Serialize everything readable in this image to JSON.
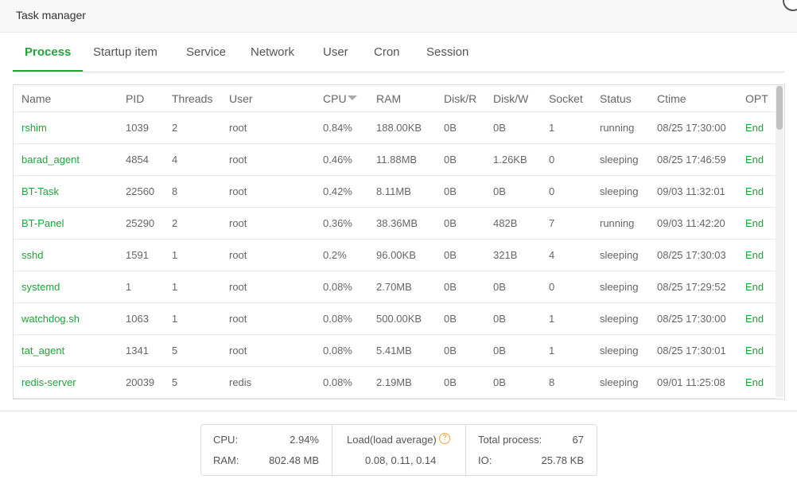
{
  "header": {
    "title": "Task manager"
  },
  "tabs": [
    "Process",
    "Startup item",
    "Service",
    "Network",
    "User",
    "Cron",
    "Session"
  ],
  "active_tab": 0,
  "table": {
    "columns": [
      "Name",
      "PID",
      "Threads",
      "User",
      "CPU",
      "RAM",
      "Disk/R",
      "Disk/W",
      "Socket",
      "Status",
      "Ctime",
      "OPT"
    ],
    "rows": [
      [
        "rshim",
        "1039",
        "2",
        "root",
        "0.84%",
        "188.00KB",
        "0B",
        "0B",
        "1",
        "running",
        "08/25 17:30:00",
        "End"
      ],
      [
        "barad_agent",
        "4854",
        "4",
        "root",
        "0.46%",
        "11.88MB",
        "0B",
        "1.26KB",
        "0",
        "sleeping",
        "08/25 17:46:59",
        "End"
      ],
      [
        "BT-Task",
        "22560",
        "8",
        "root",
        "0.42%",
        "8.11MB",
        "0B",
        "0B",
        "0",
        "sleeping",
        "09/03 11:32:01",
        "End"
      ],
      [
        "BT-Panel",
        "25290",
        "2",
        "root",
        "0.36%",
        "38.36MB",
        "0B",
        "482B",
        "7",
        "running",
        "09/03 11:42:20",
        "End"
      ],
      [
        "sshd",
        "1591",
        "1",
        "root",
        "0.2%",
        "96.00KB",
        "0B",
        "321B",
        "4",
        "sleeping",
        "08/25 17:30:03",
        "End"
      ],
      [
        "systemd",
        "1",
        "1",
        "root",
        "0.08%",
        "2.70MB",
        "0B",
        "0B",
        "0",
        "sleeping",
        "08/25 17:29:52",
        "End"
      ],
      [
        "watchdog.sh",
        "1063",
        "1",
        "root",
        "0.08%",
        "500.00KB",
        "0B",
        "0B",
        "1",
        "sleeping",
        "08/25 17:30:00",
        "End"
      ],
      [
        "tat_agent",
        "1341",
        "5",
        "root",
        "0.08%",
        "5.41MB",
        "0B",
        "0B",
        "1",
        "sleeping",
        "08/25 17:30:01",
        "End"
      ],
      [
        "redis-server",
        "20039",
        "5",
        "redis",
        "0.08%",
        "2.19MB",
        "0B",
        "0B",
        "8",
        "sleeping",
        "09/01 11:25:08",
        "End"
      ]
    ]
  },
  "summary": {
    "cpu_label": "CPU:",
    "cpu_value": "2.94%",
    "ram_label": "RAM:",
    "ram_value": "802.48 MB",
    "load_label": "Load(load average)",
    "load_value": "0.08, 0.11, 0.14",
    "total_label": "Total process:",
    "total_value": "67",
    "io_label": "IO:",
    "io_value": "25.78 KB"
  }
}
